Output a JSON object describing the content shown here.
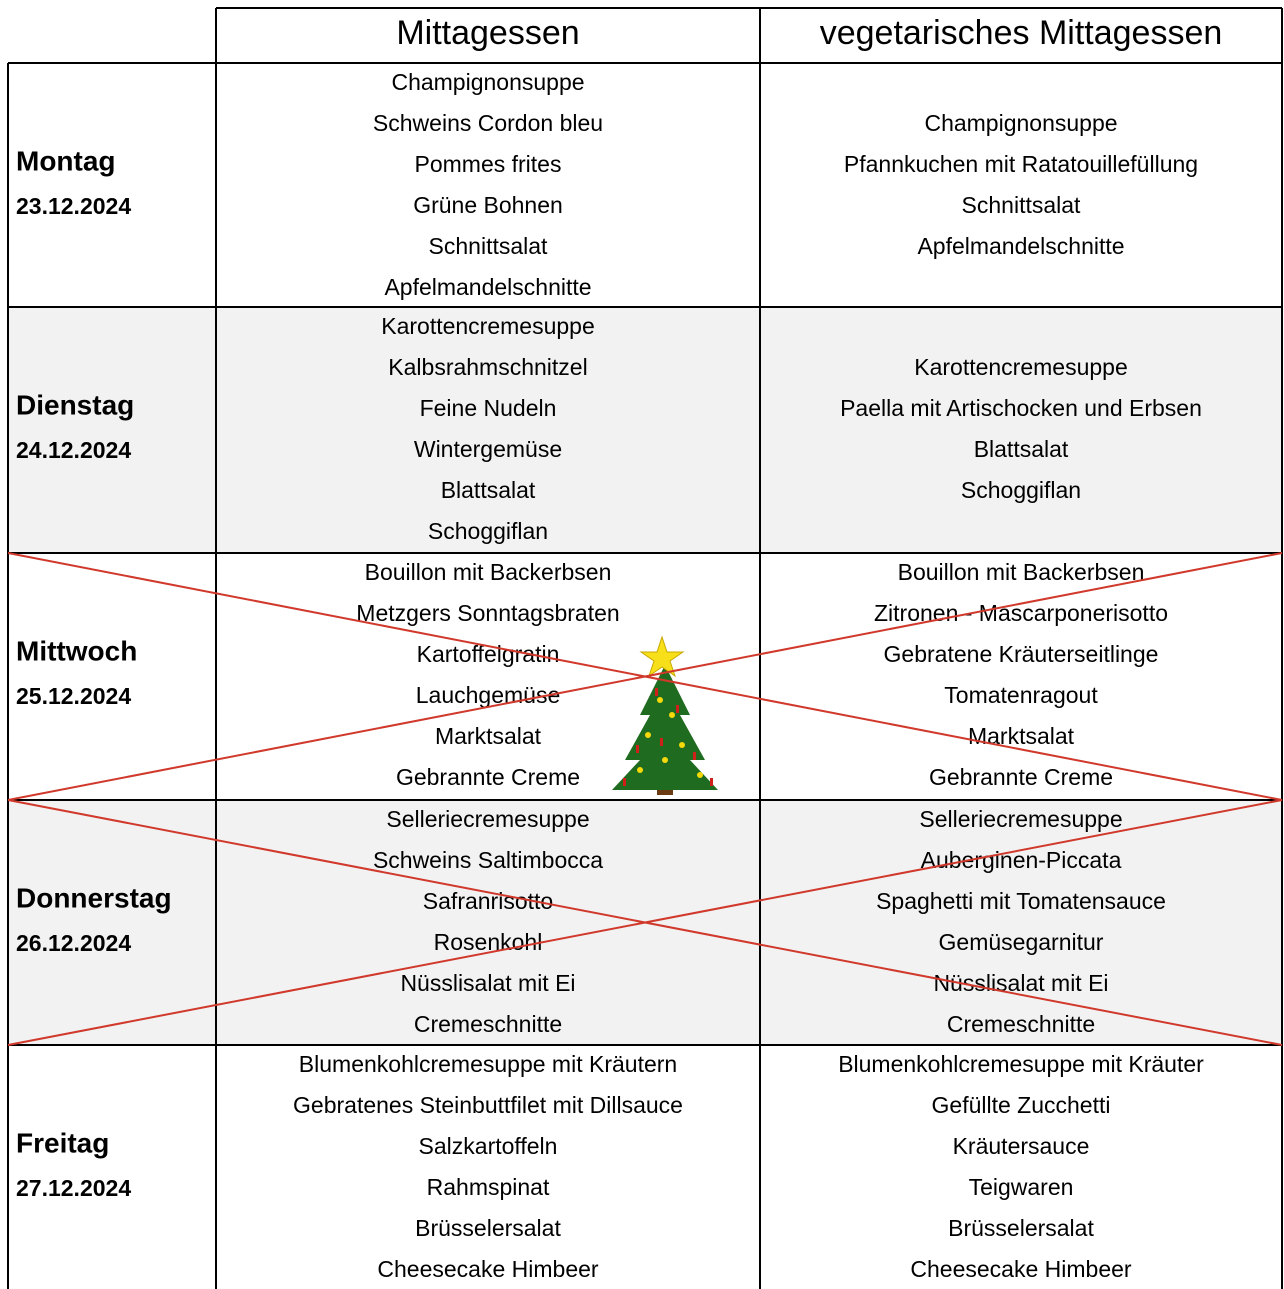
{
  "header": {
    "columns": [
      "Mittagessen",
      "vegetarisches Mittagessen"
    ]
  },
  "days": [
    {
      "day": "Montag",
      "date": "23.12.2024",
      "menu": [
        "Champignonsuppe",
        "Schweins Cordon bleu",
        "Pommes frites",
        "Grüne Bohnen",
        "Schnittsalat",
        "Apfelmandelschnitte"
      ],
      "vegetarian": [
        "Champignonsuppe",
        "Pfannkuchen mit Ratatouillefüllung",
        "Schnittsalat",
        "Apfelmandelschnitte"
      ]
    },
    {
      "day": "Dienstag",
      "date": "24.12.2024",
      "menu": [
        "Karottencremesuppe",
        "Kalbsrahmschnitzel",
        "Feine Nudeln",
        "Wintergemüse",
        "Blattsalat",
        "Schoggiflan"
      ],
      "vegetarian": [
        "Karottencremesuppe",
        "Paella mit Artischocken und Erbsen",
        "Blattsalat",
        "Schoggiflan"
      ]
    },
    {
      "day": "Mittwoch",
      "date": "25.12.2024",
      "menu": [
        "Bouillon mit Backerbsen",
        "Metzgers Sonntagsbraten",
        "Kartoffelgratin",
        "Lauchgemüse",
        "Marktsalat",
        "Gebrannte Creme"
      ],
      "vegetarian": [
        "Bouillon mit Backerbsen",
        "Zitronen - Mascarponerisotto",
        "Gebratene Kräuterseitlinge",
        "Tomatenragout",
        "Marktsalat",
        "Gebrannte Creme"
      ]
    },
    {
      "day": "Donnerstag",
      "date": "26.12.2024",
      "menu": [
        "Selleriecremesuppe",
        "Schweins Saltimbocca",
        "Safranrisotto",
        "Rosenkohl",
        "Nüsslisalat mit Ei",
        "Cremeschnitte"
      ],
      "vegetarian": [
        "Selleriecremesuppe",
        "Auberginen-Piccata",
        "Spaghetti mit Tomatensauce",
        "Gemüsegarnitur",
        "Nüsslisalat mit Ei",
        "Cremeschnitte"
      ]
    },
    {
      "day": "Freitag",
      "date": "27.12.2024",
      "menu": [
        "Blumenkohlcremesuppe mit Kräutern",
        "Gebratenes Steinbuttfilet mit Dillsauce",
        "Salzkartoffeln",
        "Rahmspinat",
        "Brüsselersalat",
        "Cheesecake Himbeer"
      ],
      "vegetarian": [
        "Blumenkohlcremesuppe mit Kräuter",
        "Gefüllte Zucchetti",
        "Kräutersauce",
        "Teigwaren",
        "Brüsselersalat",
        "Cheesecake Himbeer"
      ]
    }
  ]
}
